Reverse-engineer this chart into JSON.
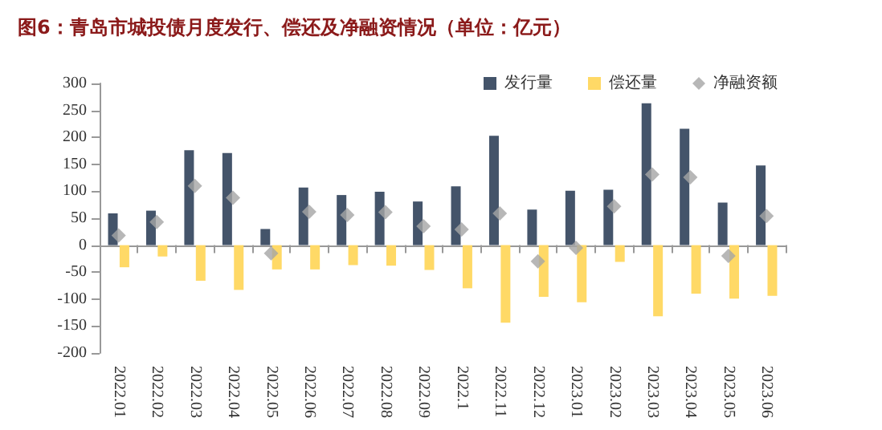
{
  "chart_data": {
    "type": "bar",
    "title": "图6：青岛市城投债月度发行、偿还及净融资情况（单位：亿元）",
    "categories": [
      "2022.01",
      "2022.02",
      "2022.03",
      "2022.04",
      "2022.05",
      "2022.06",
      "2022.07",
      "2022.08",
      "2022.09",
      "2022.1",
      "2022.11",
      "2022.12",
      "2023.01",
      "2023.02",
      "2023.03",
      "2023.04",
      "2023.05",
      "2023.06"
    ],
    "series": [
      {
        "name": "发行量",
        "color": "#44546a",
        "values": [
          59,
          64,
          176,
          171,
          30,
          107,
          93,
          99,
          81,
          109,
          203,
          66,
          101,
          103,
          263,
          216,
          79,
          148
        ]
      },
      {
        "name": "偿还量",
        "color": "#ffd966",
        "values": [
          -41,
          -21,
          -66,
          -83,
          -45,
          -45,
          -37,
          -38,
          -46,
          -80,
          -144,
          -96,
          -106,
          -31,
          -132,
          -90,
          -99,
          -94
        ]
      },
      {
        "name": "净融资额",
        "type": "scatter",
        "color": "#a5a5a5",
        "values": [
          18,
          43,
          110,
          88,
          -15,
          62,
          56,
          61,
          35,
          29,
          59,
          -30,
          -5,
          72,
          131,
          126,
          -20,
          54
        ]
      }
    ],
    "marker": "diamond",
    "ylim": [
      -200,
      300
    ],
    "yticks": [
      -200,
      -150,
      -100,
      -50,
      0,
      50,
      100,
      150,
      200,
      250,
      300
    ],
    "legend": "top right"
  }
}
